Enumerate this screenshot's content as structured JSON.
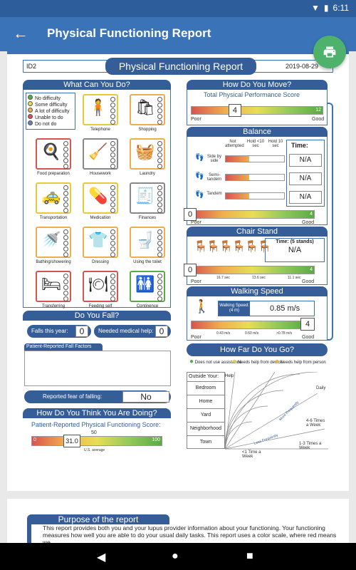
{
  "status": {
    "time": "6:11"
  },
  "app_bar": {
    "title": "Physical Functioning Report"
  },
  "report": {
    "id": "ID2",
    "title": "Physical Functioning Report",
    "date": "2019-08-29"
  },
  "what_can_you_do": {
    "header": "What Can You Do?",
    "legend": [
      {
        "label": "No difficulty",
        "color": "#5aaa44"
      },
      {
        "label": "Some difficulty",
        "color": "#e8de55"
      },
      {
        "label": "A lot of difficulty",
        "color": "#f0ad4e"
      },
      {
        "label": "Unable to do",
        "color": "#d9534f"
      },
      {
        "label": "Do not do",
        "color": "#6d7fb3"
      }
    ],
    "tiles": [
      {
        "label": "Telephone",
        "color": "#e8c93c",
        "icon": "🧍"
      },
      {
        "label": "Shopping",
        "color": "#f0ad4e",
        "icon": "🛍"
      },
      {
        "label": "Food preparation",
        "color": "#d9534f",
        "icon": "🍳"
      },
      {
        "label": "Housework",
        "color": "#888888",
        "icon": "🧹"
      },
      {
        "label": "Laundry",
        "color": "#f0ad4e",
        "icon": "🧺"
      },
      {
        "label": "Transportation",
        "color": "#e8c93c",
        "icon": "🚕"
      },
      {
        "label": "Medication",
        "color": "#e8c93c",
        "icon": "💊"
      },
      {
        "label": "Finances",
        "color": "#888888",
        "icon": "🧾"
      },
      {
        "label": "Bathing/showering",
        "color": "#f0ad4e",
        "icon": "🚿"
      },
      {
        "label": "Dressing",
        "color": "#f0ad4e",
        "icon": "👕"
      },
      {
        "label": "Using the toilet",
        "color": "#f0ad4e",
        "icon": "🚽"
      },
      {
        "label": "Transferring",
        "color": "#d9534f",
        "icon": "🛏"
      },
      {
        "label": "Feeding self",
        "color": "#d9534f",
        "icon": "🍽"
      },
      {
        "label": "Continence",
        "color": "#5aaa44",
        "icon": "🚻"
      }
    ]
  },
  "do_you_fall": {
    "header": "Do You Fall?",
    "falls_label": "Falls this year:",
    "falls_value": "0",
    "help_label": "Needed medical help:",
    "help_value": "0",
    "factors_label": "Patient-Reported Fall Factors",
    "fear_label": "Reported fear of falling:",
    "fear_value": "No"
  },
  "how_doing": {
    "header": "How Do You Think You Are Doing?",
    "subtitle": "Patient-Reported Physical Functioning Score:",
    "score": "31.0",
    "min": "0",
    "max": "100",
    "avg_value": "50",
    "avg_label": "U.S. average",
    "score_fraction": 0.31
  },
  "how_move": {
    "header": "How Do You Move?",
    "subtitle": "Total Physical Performance Score",
    "score": "4",
    "max": "12",
    "poor": "Poor",
    "good": "Good",
    "score_fraction": 0.333
  },
  "balance": {
    "header": "Balance",
    "cols": [
      "Not attempted",
      "Hold <10 sec",
      "Hold 10 sec"
    ],
    "rows": [
      "Side by side",
      "Semi-tandem",
      "Tandem"
    ],
    "time_label": "Time:",
    "times": [
      "N/A",
      "N/A",
      "N/A"
    ],
    "score": "0",
    "max": "4",
    "poor": "Poor",
    "good": "Good"
  },
  "chair_stand": {
    "header": "Chair Stand",
    "time_label": "Time: (5 stands)",
    "time_value": "N/A",
    "ticks": [
      "16.7 sec",
      "13.6 sec",
      "11.1 sec"
    ],
    "score": "0",
    "max": "4",
    "poor": "Poor",
    "good": "Good"
  },
  "walking": {
    "header": "Walking Speed",
    "label": "Walking Speed: (4 m)",
    "value": "0.85 m/s",
    "ticks": [
      "0.43 m/s",
      "0.60 m/s",
      ">0.78 m/s"
    ],
    "score": "4",
    "poor": "Poor",
    "good": "Good"
  },
  "far": {
    "header": "How Far Do You Go?",
    "legend": [
      "Does not use assistance",
      "Needs help from device",
      "Needs help from person"
    ],
    "outside": "Outside Your:",
    "help": "Help",
    "rows": [
      "Bedroom",
      "Home",
      "Yard",
      "Neighborhood",
      "Town"
    ],
    "freq": [
      "Daily",
      "4-6 Times a Week",
      "1-3 Times a Week",
      "<1 Time a Week"
    ],
    "ring_labels": [
      "More Frequently",
      "Less Frequently"
    ]
  },
  "purpose": {
    "header": "Purpose of the report",
    "text": "This report provides both you and your lupus provider information about your functioning. Your functioning measures how well you are able to do your usual daily tasks. This report uses a color scale, where red means we"
  }
}
